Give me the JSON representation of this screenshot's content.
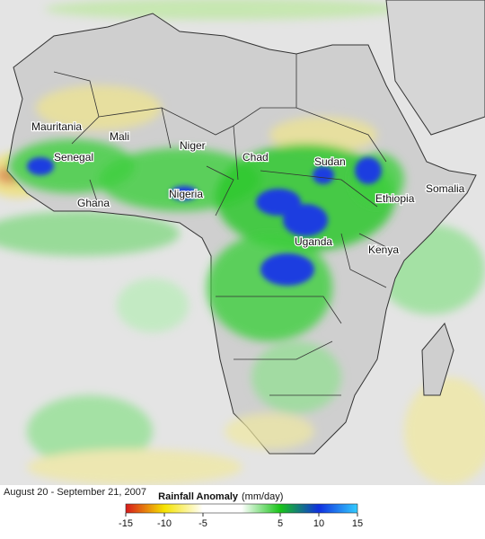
{
  "map": {
    "labels": [
      "Mauritania",
      "Mali",
      "Niger",
      "Chad",
      "Sudan",
      "Senegal",
      "Ghana",
      "Nigeria",
      "Ethiopia",
      "Somalia",
      "Uganda",
      "Kenya"
    ],
    "date": "August 20 - September 21, 2007"
  },
  "legend": {
    "title": "Rainfall Anomaly",
    "units": "(mm/day)",
    "ticks": [
      -15,
      -10,
      -5,
      5,
      10,
      15
    ],
    "colors": [
      "#d7191c",
      "#f5e300",
      "#ffffff",
      "#ffffff",
      "#19c419",
      "#1030e0",
      "#33ccff"
    ]
  }
}
